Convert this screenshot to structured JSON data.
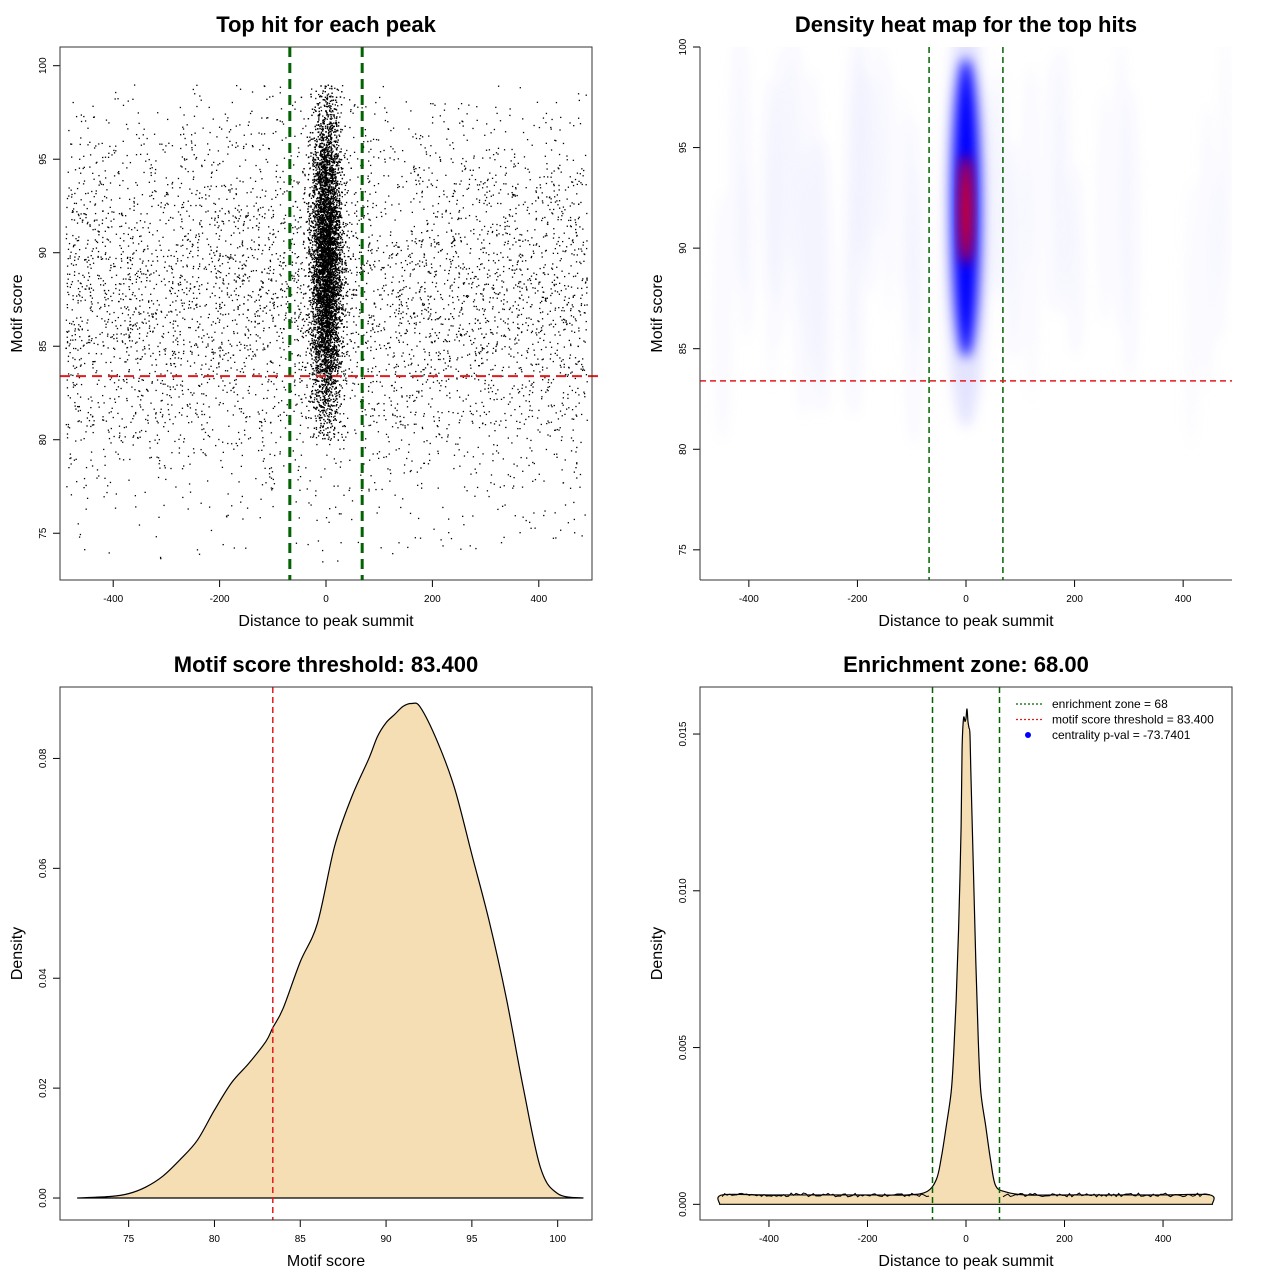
{
  "colors": {
    "zone_line": "#006400",
    "threshold_line": "#e41a1c",
    "density_fill": "#f5deb3",
    "heat_low": "#ffffff",
    "heat_mid": "#0000ff",
    "heat_high": "#ff0000",
    "points": "#000000",
    "legend_dot": "#0000ff"
  },
  "chart_data": [
    {
      "id": "scatter",
      "type": "scatter",
      "title": "Top hit for each peak",
      "xlabel": "Distance to peak summit",
      "ylabel": "Motif score",
      "xlim": [
        -500,
        500
      ],
      "ylim": [
        72.5,
        101
      ],
      "xticks": [
        -400,
        -200,
        0,
        200,
        400
      ],
      "yticks": [
        75,
        80,
        85,
        90,
        95,
        100
      ],
      "vlines": [
        -68,
        68
      ],
      "hline": 83.4,
      "grid": false,
      "distribution": {
        "central_cluster": {
          "x_center": 0,
          "x_sd": 14,
          "y_center": 89.5,
          "y_sd": 4.2,
          "y_min": 80,
          "y_max": 99,
          "approx_n": 9000
        },
        "background": {
          "x_range": [
            -490,
            490
          ],
          "y_center": 87.5,
          "y_sd": 5.5,
          "y_min": 73.5,
          "y_max": 99,
          "approx_n": 5200
        }
      }
    },
    {
      "id": "heatmap",
      "type": "heatmap",
      "title": "Density heat map for the top hits",
      "xlabel": "Distance to peak summit",
      "ylabel": "Motif score",
      "xlim": [
        -490,
        490
      ],
      "ylim": [
        73.5,
        100
      ],
      "xticks": [
        -400,
        -200,
        0,
        200,
        400
      ],
      "yticks": [
        75,
        80,
        85,
        90,
        95,
        100
      ],
      "vlines": [
        -68,
        68
      ],
      "hline": 83.4,
      "peak": {
        "x": 0,
        "y": 92,
        "x_sd": 9,
        "y_sd": 4.5
      }
    },
    {
      "id": "score-density",
      "type": "area",
      "title": "Motif score threshold: 83.400",
      "xlabel": "Motif score",
      "ylabel": "Density",
      "xlim": [
        71,
        102
      ],
      "ylim": [
        -0.004,
        0.093
      ],
      "xticks": [
        75,
        80,
        85,
        90,
        95,
        100
      ],
      "yticks": [
        0.0,
        0.02,
        0.04,
        0.06,
        0.08
      ],
      "ytick_labels": [
        "0.00",
        "0.02",
        "0.04",
        "0.06",
        "0.08"
      ],
      "vline": 83.4,
      "x": [
        72,
        74,
        75,
        76,
        77,
        78,
        79,
        80,
        81,
        82,
        83,
        83.4,
        84,
        85,
        86,
        87,
        88,
        89,
        89.5,
        90,
        90.5,
        91,
        91.5,
        92,
        93,
        94,
        95,
        96,
        97,
        98,
        99,
        100,
        101.5
      ],
      "y": [
        0.0,
        0.0003,
        0.0008,
        0.002,
        0.004,
        0.007,
        0.0105,
        0.016,
        0.021,
        0.0245,
        0.0285,
        0.031,
        0.0345,
        0.043,
        0.05,
        0.064,
        0.073,
        0.08,
        0.084,
        0.0865,
        0.088,
        0.0895,
        0.09,
        0.0893,
        0.083,
        0.0745,
        0.0625,
        0.0505,
        0.0365,
        0.02,
        0.0055,
        0.0008,
        0.0
      ]
    },
    {
      "id": "distance-density",
      "type": "area",
      "title": "Enrichment zone: 68.00",
      "xlabel": "Distance to peak summit",
      "ylabel": "Density",
      "xlim": [
        -540,
        540
      ],
      "ylim": [
        -0.0005,
        0.0165
      ],
      "xticks": [
        -400,
        -200,
        0,
        200,
        400
      ],
      "yticks": [
        0.0,
        0.005,
        0.01,
        0.015
      ],
      "ytick_labels": [
        "0.000",
        "0.005",
        "0.010",
        "0.015"
      ],
      "vlines": [
        -68,
        68
      ],
      "x": [
        -500,
        -495,
        -400,
        -200,
        -120,
        -80,
        -60,
        -50,
        -40,
        -30,
        -25,
        -20,
        -15,
        -10,
        -8,
        -5,
        -2,
        0,
        2,
        4,
        6,
        8,
        10,
        15,
        20,
        25,
        30,
        40,
        50,
        60,
        80,
        120,
        200,
        400,
        495,
        500
      ],
      "y": [
        0.0,
        0.0003,
        0.0003,
        0.0003,
        0.0003,
        0.0004,
        0.0008,
        0.0015,
        0.0025,
        0.0036,
        0.0048,
        0.0065,
        0.0088,
        0.012,
        0.0145,
        0.0155,
        0.0154,
        0.0155,
        0.0158,
        0.0154,
        0.0152,
        0.015,
        0.0137,
        0.0107,
        0.0077,
        0.0052,
        0.0036,
        0.0025,
        0.0014,
        0.0006,
        0.0004,
        0.0003,
        0.0003,
        0.0003,
        0.0003,
        0.0
      ],
      "legend": {
        "placement": "top-right",
        "items": [
          {
            "label": "enrichment zone = 68",
            "symbol": "dotted-line",
            "color": "#006400"
          },
          {
            "label": "motif score threshold = 83.400",
            "symbol": "dotted-line",
            "color": "#e41a1c"
          },
          {
            "label": "centrality p-val = -73.7401",
            "symbol": "dot",
            "color": "#0000ff"
          }
        ]
      }
    }
  ]
}
